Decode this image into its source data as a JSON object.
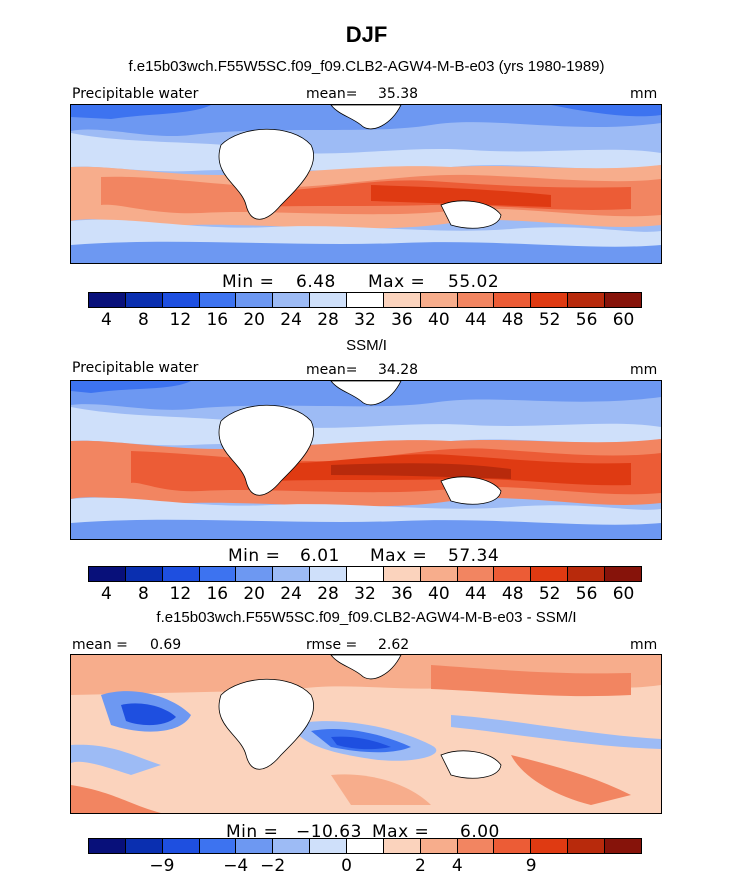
{
  "page": {
    "title": "DJF",
    "subtitle_1": "f.e15b03wch.F55W5SC.f09_f09.CLB2-AGW4-M-B-e03 (yrs 1980-1989)",
    "subtitle_2": "SSM/I",
    "subtitle_3": "f.e15b03wch.F55W5SC.f09_f09.CLB2-AGW4-M-B-e03 - SSM/I"
  },
  "chart_data": [
    {
      "type": "heatmap",
      "variable": "Precipitable water",
      "units": "mm",
      "mean_label": "mean=",
      "mean": "35.38",
      "min_label": "Min =",
      "min": "6.48",
      "max_label": "Max =",
      "max": "55.02",
      "colorbar_ticks": [
        "4",
        "8",
        "12",
        "16",
        "20",
        "24",
        "28",
        "32",
        "36",
        "40",
        "44",
        "48",
        "52",
        "56",
        "60"
      ]
    },
    {
      "type": "heatmap",
      "variable": "Precipitable water",
      "units": "mm",
      "mean_label": "mean=",
      "mean": "34.28",
      "min_label": "Min =",
      "min": "6.01",
      "max_label": "Max =",
      "max": "57.34",
      "colorbar_ticks": [
        "4",
        "8",
        "12",
        "16",
        "20",
        "24",
        "28",
        "32",
        "36",
        "40",
        "44",
        "48",
        "52",
        "56",
        "60"
      ]
    },
    {
      "type": "heatmap",
      "variable": "",
      "units": "mm",
      "mean_label": "mean =",
      "mean": "0.69",
      "rmse_label": "rmse =",
      "rmse": "2.62",
      "min_label": "Min =",
      "min": "−10.63",
      "max_label": "Max =",
      "max": "6.00",
      "colorbar_ticks": [
        "−9",
        "−4",
        "−2",
        "0",
        "2",
        "4",
        "9"
      ]
    }
  ],
  "colors": {
    "scale": [
      "#08107a",
      "#0a2fb0",
      "#1e4fe0",
      "#3d73f0",
      "#6d98f2",
      "#9dbbf5",
      "#cfe0fa",
      "#ffffff",
      "#fbd3bd",
      "#f7ad8c",
      "#f28561",
      "#ec5c36",
      "#df3a12",
      "#b82a0c",
      "#86130a"
    ]
  }
}
